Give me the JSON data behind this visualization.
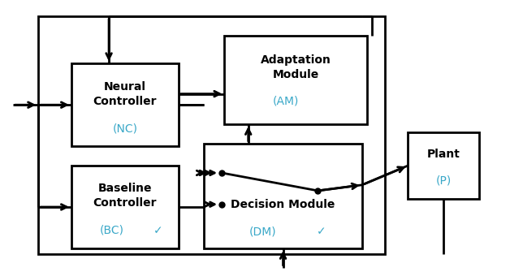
{
  "fig_width": 6.28,
  "fig_height": 3.4,
  "dpi": 100,
  "bg_color": "#ffffff",
  "cyan_color": "#3aa8c8",
  "lw": 2.0,
  "boxes": {
    "outer": [
      0.075,
      0.08,
      0.68,
      0.86
    ],
    "nc": [
      0.14,
      0.47,
      0.21,
      0.3
    ],
    "bc": [
      0.14,
      0.1,
      0.21,
      0.3
    ],
    "am": [
      0.44,
      0.55,
      0.28,
      0.32
    ],
    "dm": [
      0.4,
      0.1,
      0.31,
      0.38
    ],
    "plant": [
      0.8,
      0.28,
      0.14,
      0.24
    ]
  },
  "nc_label": [
    "Neural",
    "Controller",
    "(NC)"
  ],
  "bc_label": [
    "Baseline",
    "Controller",
    "(BC)"
  ],
  "am_label": [
    "Adaptation",
    "Module",
    "(AM)"
  ],
  "dm_label": [
    "Decision Module",
    "(DM)"
  ],
  "plant_label": [
    "Plant",
    "(P)"
  ],
  "font_size": 10,
  "font_size_sub": 10
}
